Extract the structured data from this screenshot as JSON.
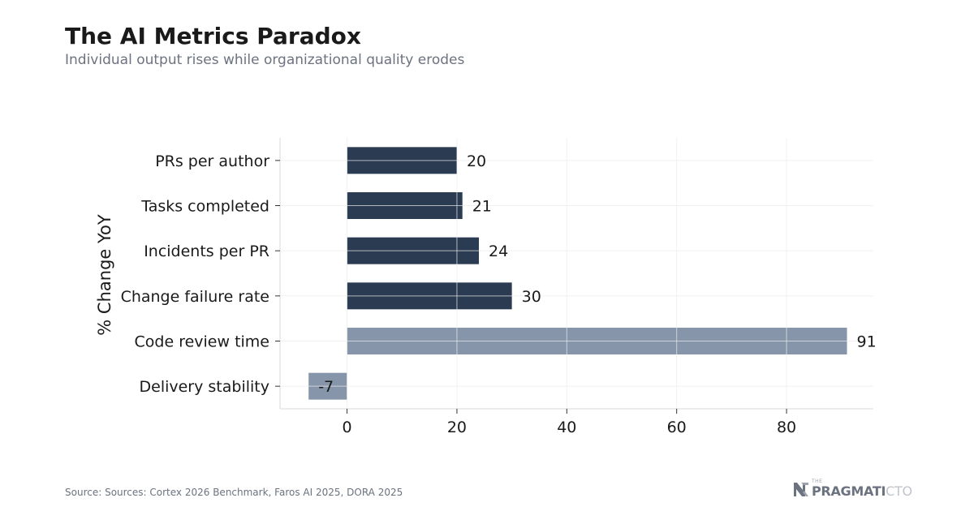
{
  "header": {
    "title": "The AI Metrics Paradox",
    "subtitle": "Individual output rises while organizational quality erodes"
  },
  "footer": {
    "source": "Source: Sources: Cortex 2026 Benchmark, Faros AI 2025, DORA 2025",
    "brand_the": "THE",
    "brand_strong": "PRAGMATI",
    "brand_light": "CTO"
  },
  "colors": {
    "dark_bar": "#2b3b52",
    "light_bar": "#8695aa",
    "grid": "#ececec",
    "axis": "#d9d9d9",
    "text": "#1a1a1a"
  },
  "chart_data": {
    "type": "bar",
    "orientation": "horizontal",
    "categories": [
      "PRs per author",
      "Tasks completed",
      "Incidents per PR",
      "Change failure rate",
      "Code review time",
      "Delivery stability"
    ],
    "values": [
      20,
      21,
      24,
      30,
      91,
      -7
    ],
    "data_labels": [
      "20",
      "21",
      "24",
      "30",
      "91",
      "-7"
    ],
    "bar_colors": [
      "#2b3b52",
      "#2b3b52",
      "#2b3b52",
      "#2b3b52",
      "#8695aa",
      "#8695aa"
    ],
    "xlim": [
      -12.2,
      95.8
    ],
    "xticks": [
      0,
      20,
      40,
      60,
      80
    ],
    "xlabel": "",
    "ylabel": "% Change YoY",
    "grid": true,
    "legend": false
  }
}
